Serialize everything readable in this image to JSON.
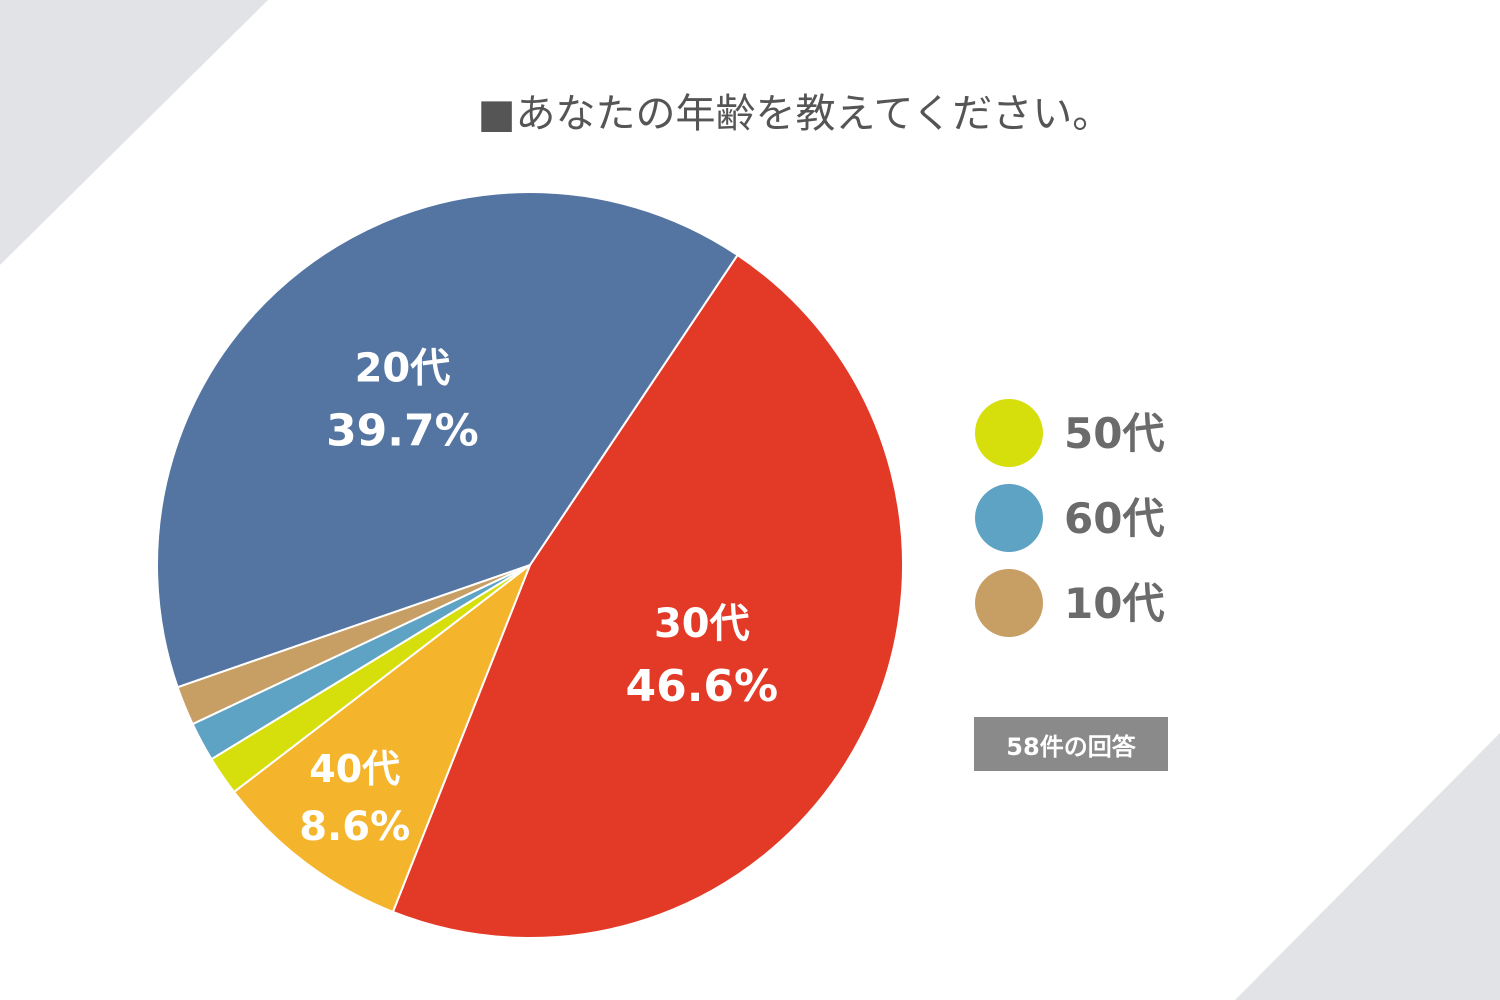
{
  "colors": {
    "background_accent": "#e2e3e6",
    "title_text": "#555555",
    "legend_text": "#6b6b6b",
    "badge_bg": "#8a8a8a"
  },
  "chart_data": {
    "type": "pie",
    "title": "■あなたの年齢を教えてください。",
    "slices": [
      {
        "label": "30代",
        "value": 46.6,
        "color": "#e33a28",
        "show_label": true,
        "value_text": "46.6%"
      },
      {
        "label": "40代",
        "value": 8.6,
        "color": "#f4b52d",
        "show_label": true,
        "value_text": "8.6%"
      },
      {
        "label": "50代",
        "value": 1.7,
        "color": "#d6df0b",
        "show_label": false
      },
      {
        "label": "60代",
        "value": 1.7,
        "color": "#5ea3c4",
        "show_label": false
      },
      {
        "label": "10代",
        "value": 1.7,
        "color": "#c79e63",
        "show_label": false
      },
      {
        "label": "20代",
        "value": 39.7,
        "color": "#5475a1",
        "show_label": true,
        "value_text": "39.7%"
      }
    ],
    "legend": [
      {
        "label": "50代",
        "color": "#d6df0b"
      },
      {
        "label": "60代",
        "color": "#5ea3c4"
      },
      {
        "label": "10代",
        "color": "#c79e63"
      }
    ],
    "legend_position": "right"
  },
  "response_count": "58件の回答"
}
